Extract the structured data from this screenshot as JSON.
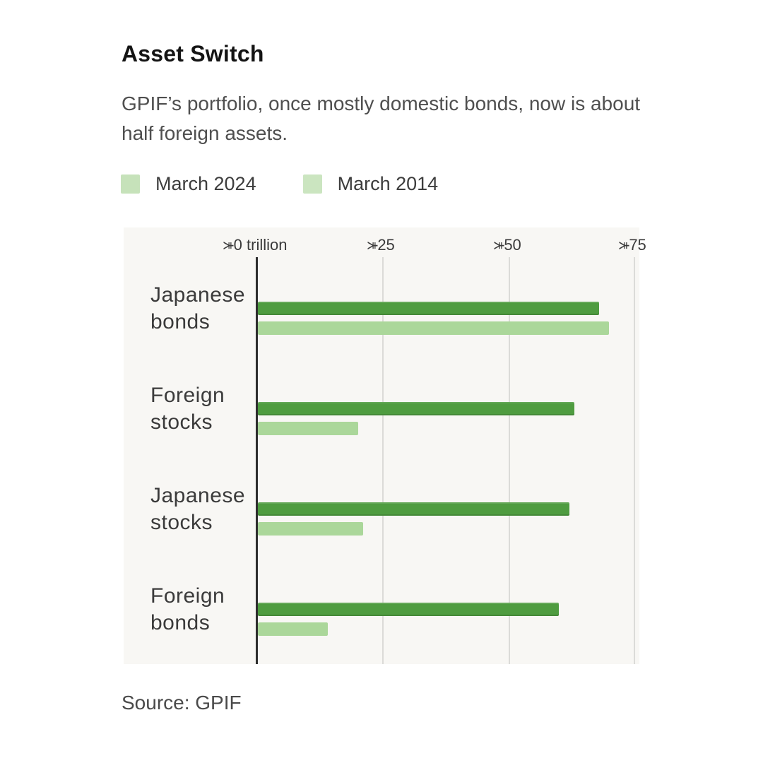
{
  "header": {
    "title": "Asset Switch",
    "subtitle": "GPIF’s portfolio, once mostly domestic bonds, now is about half foreign assets."
  },
  "legend": {
    "items": [
      {
        "label": "March 2024",
        "swatch": "#c6e2ba"
      },
      {
        "label": "March 2014",
        "swatch": "#cbe5c0"
      }
    ]
  },
  "chart_data": {
    "type": "bar",
    "orientation": "horizontal",
    "title": "Asset Switch",
    "categories": [
      "Japanese bonds",
      "Foreign stocks",
      "Japanese stocks",
      "Foreign bonds"
    ],
    "category_lines": [
      [
        "Japanese",
        "bonds"
      ],
      [
        "Foreign",
        "stocks"
      ],
      [
        "Japanese",
        "stocks"
      ],
      [
        "Foreign",
        "bonds"
      ]
    ],
    "series": [
      {
        "name": "March 2024",
        "color": "#4f9c40",
        "values": [
          68,
          63,
          62,
          60
        ]
      },
      {
        "name": "March 2014",
        "color": "#abd79a",
        "values": [
          70,
          20,
          21,
          14
        ]
      }
    ],
    "x_ticks": [
      "¥0 trillion",
      "¥25",
      "¥50",
      "¥75"
    ],
    "x_tick_values": [
      0,
      25,
      50,
      75
    ],
    "xlim": [
      0,
      76
    ],
    "unit": "trillion yen",
    "grid": true,
    "legend_position": "top",
    "axis_color": "#2e2e2e",
    "gridline_color": "#dbdbd8"
  },
  "footer": {
    "source": "Source: GPIF"
  }
}
